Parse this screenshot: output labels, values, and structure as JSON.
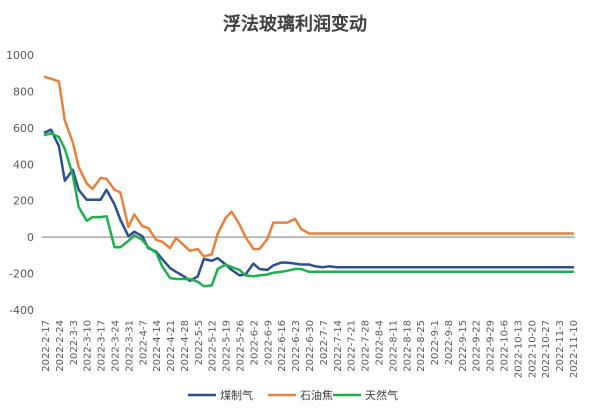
{
  "chart_data": {
    "type": "line",
    "title": "浮法玻璃利润变动",
    "xlabel": "",
    "ylabel": "",
    "ylim": [
      -400,
      1000
    ],
    "yticks": [
      1000,
      800,
      600,
      400,
      200,
      0,
      -200,
      -400
    ],
    "grid": false,
    "legend_position": "bottom",
    "colors": {
      "煤制气": "#2e4f8f",
      "石油焦": "#e8813a",
      "天然气": "#1db04d",
      "zero_line": "#a6a6a6"
    },
    "categories": [
      "2022-2-17",
      "2022-2-24",
      "2022-3-3",
      "2022-3-10",
      "2022-3-17",
      "2022-3-24",
      "2022-3-31",
      "2022-4-7",
      "2022-4-14",
      "2022-4-21",
      "2022-4-28",
      "2022-5-5",
      "2022-5-12",
      "2022-5-19",
      "2022-5-26",
      "2022-6-2",
      "2022-6-9",
      "2022-6-16",
      "2022-6-23",
      "2022-6-30",
      "2022-7-7",
      "2022-7-14",
      "2022-7-21",
      "2022-7-28",
      "2022-8-4",
      "2022-8-11",
      "2022-8-18",
      "2022-8-25",
      "2022-9-1",
      "2022-9-8",
      "2022-9-15",
      "2022-9-22",
      "2022-9-29",
      "2022-10-6",
      "2022-10-13",
      "2022-10-20",
      "2022-10-27",
      "2022-11-3",
      "2022-11-10"
    ],
    "x": [
      "2022-2-17",
      "2022-2-20",
      "2022-2-24",
      "2022-2-27",
      "2022-3-3",
      "2022-3-6",
      "2022-3-10",
      "2022-3-13",
      "2022-3-17",
      "2022-3-20",
      "2022-3-24",
      "2022-3-27",
      "2022-3-31",
      "2022-4-3",
      "2022-4-7",
      "2022-4-10",
      "2022-4-14",
      "2022-4-17",
      "2022-4-21",
      "2022-4-24",
      "2022-4-28",
      "2022-5-1",
      "2022-5-5",
      "2022-5-8",
      "2022-5-12",
      "2022-5-15",
      "2022-5-19",
      "2022-5-22",
      "2022-5-26",
      "2022-5-29",
      "2022-6-2",
      "2022-6-5",
      "2022-6-9",
      "2022-6-12",
      "2022-6-16",
      "2022-6-19",
      "2022-6-23",
      "2022-6-26",
      "2022-6-30",
      "2022-7-3",
      "2022-7-7",
      "2022-7-10",
      "2022-7-14",
      "2022-7-17",
      "2022-7-21",
      "2022-7-24",
      "2022-7-28",
      "2022-7-31",
      "2022-8-4",
      "2022-8-7",
      "2022-8-11",
      "2022-8-14",
      "2022-8-18",
      "2022-8-21",
      "2022-8-25",
      "2022-8-28",
      "2022-9-1",
      "2022-9-4",
      "2022-9-8",
      "2022-9-11",
      "2022-9-15",
      "2022-9-18",
      "2022-9-22",
      "2022-9-25",
      "2022-9-29",
      "2022-10-2",
      "2022-10-6",
      "2022-10-9",
      "2022-10-13",
      "2022-10-16",
      "2022-10-20",
      "2022-10-23",
      "2022-10-27",
      "2022-10-30",
      "2022-11-3",
      "2022-11-6",
      "2022-11-10"
    ],
    "series": [
      {
        "name": "煤制气",
        "values": [
          575,
          590,
          500,
          310,
          370,
          260,
          205,
          205,
          205,
          260,
          180,
          95,
          5,
          30,
          5,
          -60,
          -80,
          -120,
          -170,
          -190,
          -215,
          -240,
          -215,
          -120,
          -130,
          -115,
          -150,
          -180,
          -210,
          -205,
          -145,
          -175,
          -180,
          -155,
          -140,
          -140,
          -145,
          -150,
          -150,
          -160,
          -165,
          -160,
          -165,
          -165,
          -165,
          -165,
          -165,
          -165,
          -165,
          -165,
          -165,
          -165,
          -165,
          -165,
          -165,
          -165,
          -165,
          -165,
          -165,
          -165,
          -165,
          -165,
          -165,
          -165,
          -165,
          -165,
          -165,
          -165,
          -165,
          -165,
          -165,
          -165,
          -165,
          -165,
          -165,
          -165,
          -165
        ]
      },
      {
        "name": "石油焦",
        "values": [
          880,
          870,
          855,
          640,
          520,
          385,
          295,
          265,
          325,
          320,
          260,
          245,
          55,
          125,
          60,
          50,
          -15,
          -25,
          -60,
          -5,
          -45,
          -75,
          -65,
          -105,
          -95,
          20,
          105,
          140,
          70,
          0,
          -65,
          -65,
          -10,
          80,
          80,
          80,
          100,
          45,
          20,
          20,
          20,
          20,
          20,
          20,
          20,
          20,
          20,
          20,
          20,
          20,
          20,
          20,
          20,
          20,
          20,
          20,
          20,
          20,
          20,
          20,
          20,
          20,
          20,
          20,
          20,
          20,
          20,
          20,
          20,
          20,
          20,
          20,
          20,
          20,
          20,
          20,
          20
        ]
      },
      {
        "name": "天然气",
        "values": [
          560,
          570,
          550,
          485,
          340,
          165,
          90,
          110,
          110,
          115,
          -55,
          -55,
          -20,
          10,
          -15,
          -55,
          -85,
          -160,
          -225,
          -230,
          -230,
          -230,
          -245,
          -270,
          -265,
          -175,
          -150,
          -165,
          -180,
          -210,
          -215,
          -210,
          -205,
          -195,
          -190,
          -185,
          -175,
          -175,
          -190,
          -190,
          -190,
          -190,
          -190,
          -190,
          -190,
          -190,
          -190,
          -190,
          -190,
          -190,
          -190,
          -190,
          -190,
          -190,
          -190,
          -190,
          -190,
          -190,
          -190,
          -190,
          -190,
          -190,
          -190,
          -190,
          -190,
          -190,
          -190,
          -190,
          -190,
          -190,
          -190,
          -190,
          -190,
          -190,
          -190,
          -190,
          -190
        ]
      }
    ]
  }
}
